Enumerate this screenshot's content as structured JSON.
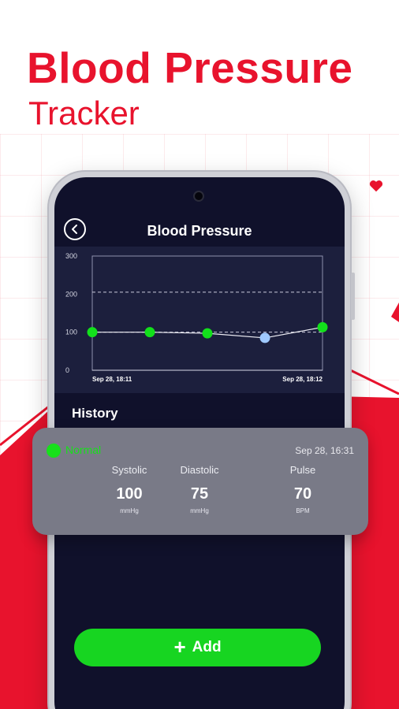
{
  "promo": {
    "title": "Blood Pressure",
    "subtitle": "Tracker"
  },
  "app_bar": {
    "title": "Blood Pressure"
  },
  "chart_data": {
    "type": "line",
    "x_start_label": "Sep 28, 18:11",
    "x_end_label": "Sep 28, 18:12",
    "y_ticks": [
      "300",
      "200",
      "100",
      "0"
    ],
    "ylim": [
      0,
      300
    ],
    "reference_lines": [
      205,
      100
    ],
    "values": [
      100,
      100,
      97,
      85,
      113
    ],
    "point_colors": [
      "#12e01b",
      "#12e01b",
      "#12e01b",
      "#9fc9ff",
      "#12e01b"
    ]
  },
  "history": {
    "label": "History"
  },
  "reading": {
    "status": "Normal",
    "date": "Sep 28, 16:31",
    "metrics": [
      {
        "label": "Systolic",
        "value": "100",
        "unit": "mmHg"
      },
      {
        "label": "Diastolic",
        "value": "75",
        "unit": "mmHg"
      },
      {
        "label": "Pulse",
        "value": "70",
        "unit": "BPM"
      }
    ]
  },
  "actions": {
    "add_label": "Add",
    "add_icon": "plus-icon"
  },
  "colors": {
    "brand_red": "#e8132d",
    "screen_bg": "#10112b",
    "accent_green": "#17d521",
    "card_bg": "#797a87"
  }
}
